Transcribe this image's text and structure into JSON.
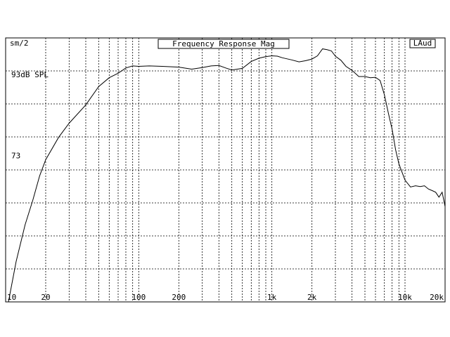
{
  "chart_data": {
    "type": "line",
    "title": "Frequency Response Mag",
    "badge": "LAud",
    "ylabel_unit": "sm/2",
    "x_scale": "log",
    "xlim": [
      10,
      20000
    ],
    "ylim": [
      38,
      103
    ],
    "grid": true,
    "y_annotations": [
      {
        "value": 93,
        "text": "93dB SPL"
      },
      {
        "value": 73,
        "text": "73"
      }
    ],
    "x_ticks": [
      {
        "value": 10,
        "label": "10"
      },
      {
        "value": 20,
        "label": "20"
      },
      {
        "value": 100,
        "label": "100"
      },
      {
        "value": 200,
        "label": "200"
      },
      {
        "value": 1000,
        "label": "1k"
      },
      {
        "value": 2000,
        "label": "2k"
      },
      {
        "value": 10000,
        "label": "10k"
      },
      {
        "value": 20000,
        "label": "20k"
      }
    ],
    "series": [
      {
        "color": "#000000",
        "x": [
          10.5,
          12,
          14,
          16,
          18,
          20,
          25,
          30,
          40,
          50,
          60,
          70,
          80,
          90,
          100,
          120,
          150,
          200,
          250,
          300,
          350,
          400,
          450,
          500,
          600,
          700,
          800,
          900,
          1000,
          1100,
          1200,
          1400,
          1600,
          1800,
          2000,
          2200,
          2400,
          2600,
          2800,
          3000,
          3300,
          3600,
          4000,
          4500,
          5000,
          5500,
          6000,
          6500,
          7000,
          7500,
          8000,
          8500,
          9000,
          10000,
          11000,
          12000,
          13000,
          14000,
          15000,
          16000,
          17000,
          18000,
          19000,
          20000
        ],
        "y": [
          38,
          48,
          57,
          63,
          69,
          73,
          78.5,
          82,
          86.5,
          91,
          93.2,
          94.3,
          95.6,
          96.1,
          96.0,
          96.1,
          96.0,
          95.8,
          95.3,
          95.7,
          96.1,
          96.2,
          95.6,
          95.1,
          95.5,
          97.2,
          98.0,
          98.4,
          98.6,
          98.5,
          98.1,
          97.6,
          97.1,
          97.4,
          97.8,
          98.6,
          100.3,
          100.1,
          99.8,
          98.5,
          97.5,
          96.0,
          95.0,
          93.5,
          93.5,
          93.2,
          93.3,
          92.5,
          89.0,
          84.5,
          80.5,
          75.5,
          72.0,
          68.0,
          66.3,
          66.6,
          66.4,
          66.6,
          65.8,
          65.4,
          65.0,
          63.8,
          65.0,
          61.5
        ]
      }
    ]
  }
}
